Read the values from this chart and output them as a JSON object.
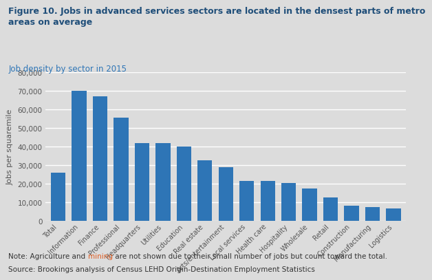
{
  "title_bold": "Figure 10. Jobs in advanced services sectors are located in the densest parts of metro\nareas on average",
  "subtitle": "Job density by sector in 2015",
  "categories": [
    "Total",
    "Information",
    "Finance",
    "Professional",
    "Headquarters",
    "Utilities",
    "Education",
    "Real estate",
    "Arts/entertainment",
    "Local services",
    "Health care",
    "Hospitality",
    "Wholesale",
    "Retail",
    "Construction",
    "Manufacturing",
    "Logistics"
  ],
  "values": [
    26000,
    70000,
    67000,
    55500,
    42000,
    42000,
    40000,
    32500,
    29000,
    21500,
    21500,
    20500,
    17500,
    12500,
    8000,
    7500,
    6500
  ],
  "bar_color": "#2E75B6",
  "ylabel": "Jobs per squaremile",
  "ylim": [
    0,
    80000
  ],
  "yticks": [
    0,
    10000,
    20000,
    30000,
    40000,
    50000,
    60000,
    70000,
    80000
  ],
  "background_color": "#DCDCDC",
  "grid_color": "#FFFFFF",
  "title_color": "#1F4E79",
  "subtitle_color": "#2E75B6",
  "note_color": "#333333",
  "note_highlight_color": "#E05C20",
  "tick_color": "#555555",
  "title_fontsize": 9,
  "subtitle_fontsize": 8.5,
  "note_fontsize": 7.5,
  "ylabel_fontsize": 8,
  "xtick_fontsize": 7,
  "ytick_fontsize": 7.5
}
